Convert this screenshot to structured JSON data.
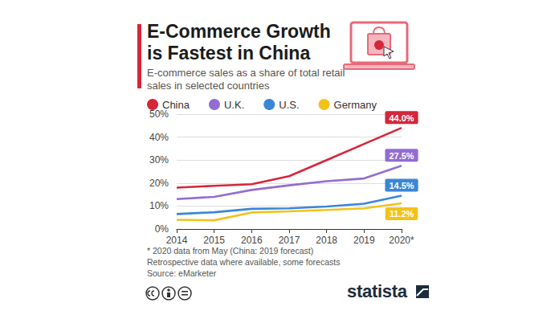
{
  "chart_data": {
    "type": "line",
    "title": "E-Commerce Growth is Fastest in China",
    "subtitle": "E-commerce sales as a share of total retail sales in selected countries",
    "categories": [
      "2014",
      "2015",
      "2016",
      "2017",
      "2018",
      "2019",
      "2020*"
    ],
    "series": [
      {
        "name": "China",
        "color": "#d6263a",
        "values": [
          18,
          18.8,
          19.5,
          23,
          30,
          37,
          44.0
        ],
        "value_labels": [
          null,
          null,
          null,
          null,
          null,
          null,
          "44.0%"
        ]
      },
      {
        "name": "U.K.",
        "color": "#936cd2",
        "values": [
          13,
          14,
          17,
          19,
          20.8,
          22,
          27.5
        ],
        "value_labels": [
          null,
          null,
          null,
          null,
          null,
          null,
          "27.5%"
        ]
      },
      {
        "name": "U.S.",
        "color": "#3a87d6",
        "values": [
          6.5,
          7.3,
          8.8,
          9,
          9.8,
          11,
          14.5
        ],
        "value_labels": [
          null,
          null,
          null,
          null,
          null,
          null,
          "14.5%"
        ]
      },
      {
        "name": "Germany",
        "color": "#f2c21b",
        "values": [
          4,
          3.8,
          7.2,
          7.7,
          8.3,
          9,
          11.2
        ],
        "value_labels": [
          null,
          null,
          null,
          null,
          null,
          null,
          "11.2%"
        ]
      }
    ],
    "ylim": [
      0,
      50
    ],
    "yticks": [
      {
        "value": 0,
        "label": "0%"
      },
      {
        "value": 10,
        "label": "10%"
      },
      {
        "value": 20,
        "label": "20%"
      },
      {
        "value": 30,
        "label": "30%"
      },
      {
        "value": 40,
        "label": "40%"
      },
      {
        "value": 50,
        "label": "50%"
      }
    ],
    "grid": true,
    "legend": "top",
    "notes": [
      "* 2020 data from May (China: 2019 forecast)",
      "Retrospective data where available, some forecasts",
      "Source: eMarketer"
    ],
    "brand": "statista"
  }
}
